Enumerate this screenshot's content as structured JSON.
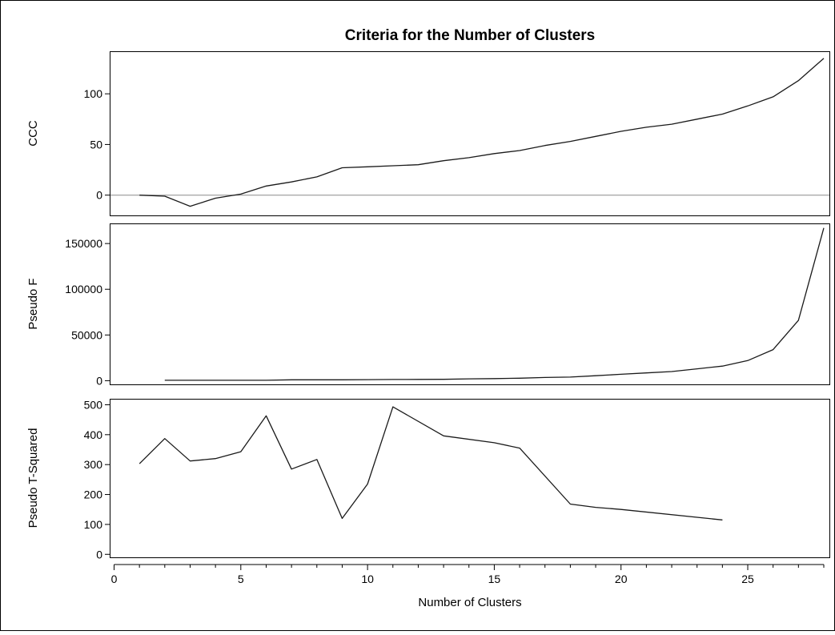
{
  "chart_data": {
    "type": "line",
    "title": "Criteria for the Number of Clusters",
    "xlabel": "Number of Clusters",
    "xlim": [
      0,
      28
    ],
    "xticks": [
      0,
      5,
      10,
      15,
      20,
      25
    ],
    "grid": false,
    "panels": [
      {
        "ylabel": "CCC",
        "ylim": [
          -20,
          142
        ],
        "yticks": [
          0,
          50,
          100
        ],
        "reference_line_y": 0,
        "series": [
          {
            "x": [
              1,
              2,
              3,
              4,
              5,
              6,
              7,
              8,
              9,
              10,
              11,
              12,
              13,
              14,
              15,
              16,
              17,
              18,
              19,
              20,
              21,
              22,
              23,
              24,
              25,
              26,
              27,
              28
            ],
            "y": [
              0,
              -1,
              -11,
              -3,
              1,
              9,
              13,
              18,
              27,
              28,
              29,
              30,
              34,
              37,
              41,
              44,
              49,
              53,
              58,
              63,
              67,
              70,
              75,
              80,
              88,
              97,
              113,
              135
            ]
          }
        ]
      },
      {
        "ylabel": "Pseudo F",
        "ylim": [
          -4000,
          172000
        ],
        "yticks": [
          0,
          50000,
          100000,
          150000
        ],
        "series": [
          {
            "x": [
              2,
              3,
              4,
              5,
              6,
              7,
              8,
              9,
              10,
              11,
              12,
              13,
              14,
              15,
              16,
              17,
              18,
              19,
              20,
              21,
              22,
              23,
              24,
              25,
              26,
              27,
              28
            ],
            "y": [
              500,
              500,
              500,
              500,
              500,
              1000,
              1000,
              1000,
              1200,
              1300,
              1400,
              1500,
              2000,
              2300,
              2700,
              3500,
              4000,
              5500,
              7000,
              8500,
              10000,
              13000,
              16000,
              22000,
              34000,
              66000,
              167000
            ]
          }
        ]
      },
      {
        "ylabel": "Pseudo T-Squared",
        "ylim": [
          -10,
          520
        ],
        "yticks": [
          0,
          100,
          200,
          300,
          400,
          500
        ],
        "series": [
          {
            "x": [
              1,
              2,
              3,
              4,
              5,
              6,
              7,
              8,
              9,
              10,
              11,
              13,
              15,
              16,
              18,
              19,
              20,
              24
            ],
            "y": [
              303,
              387,
              312,
              320,
              343,
              463,
              285,
              317,
              120,
              235,
              493,
              396,
              373,
              355,
              168,
              157,
              150,
              115
            ]
          }
        ]
      }
    ]
  }
}
